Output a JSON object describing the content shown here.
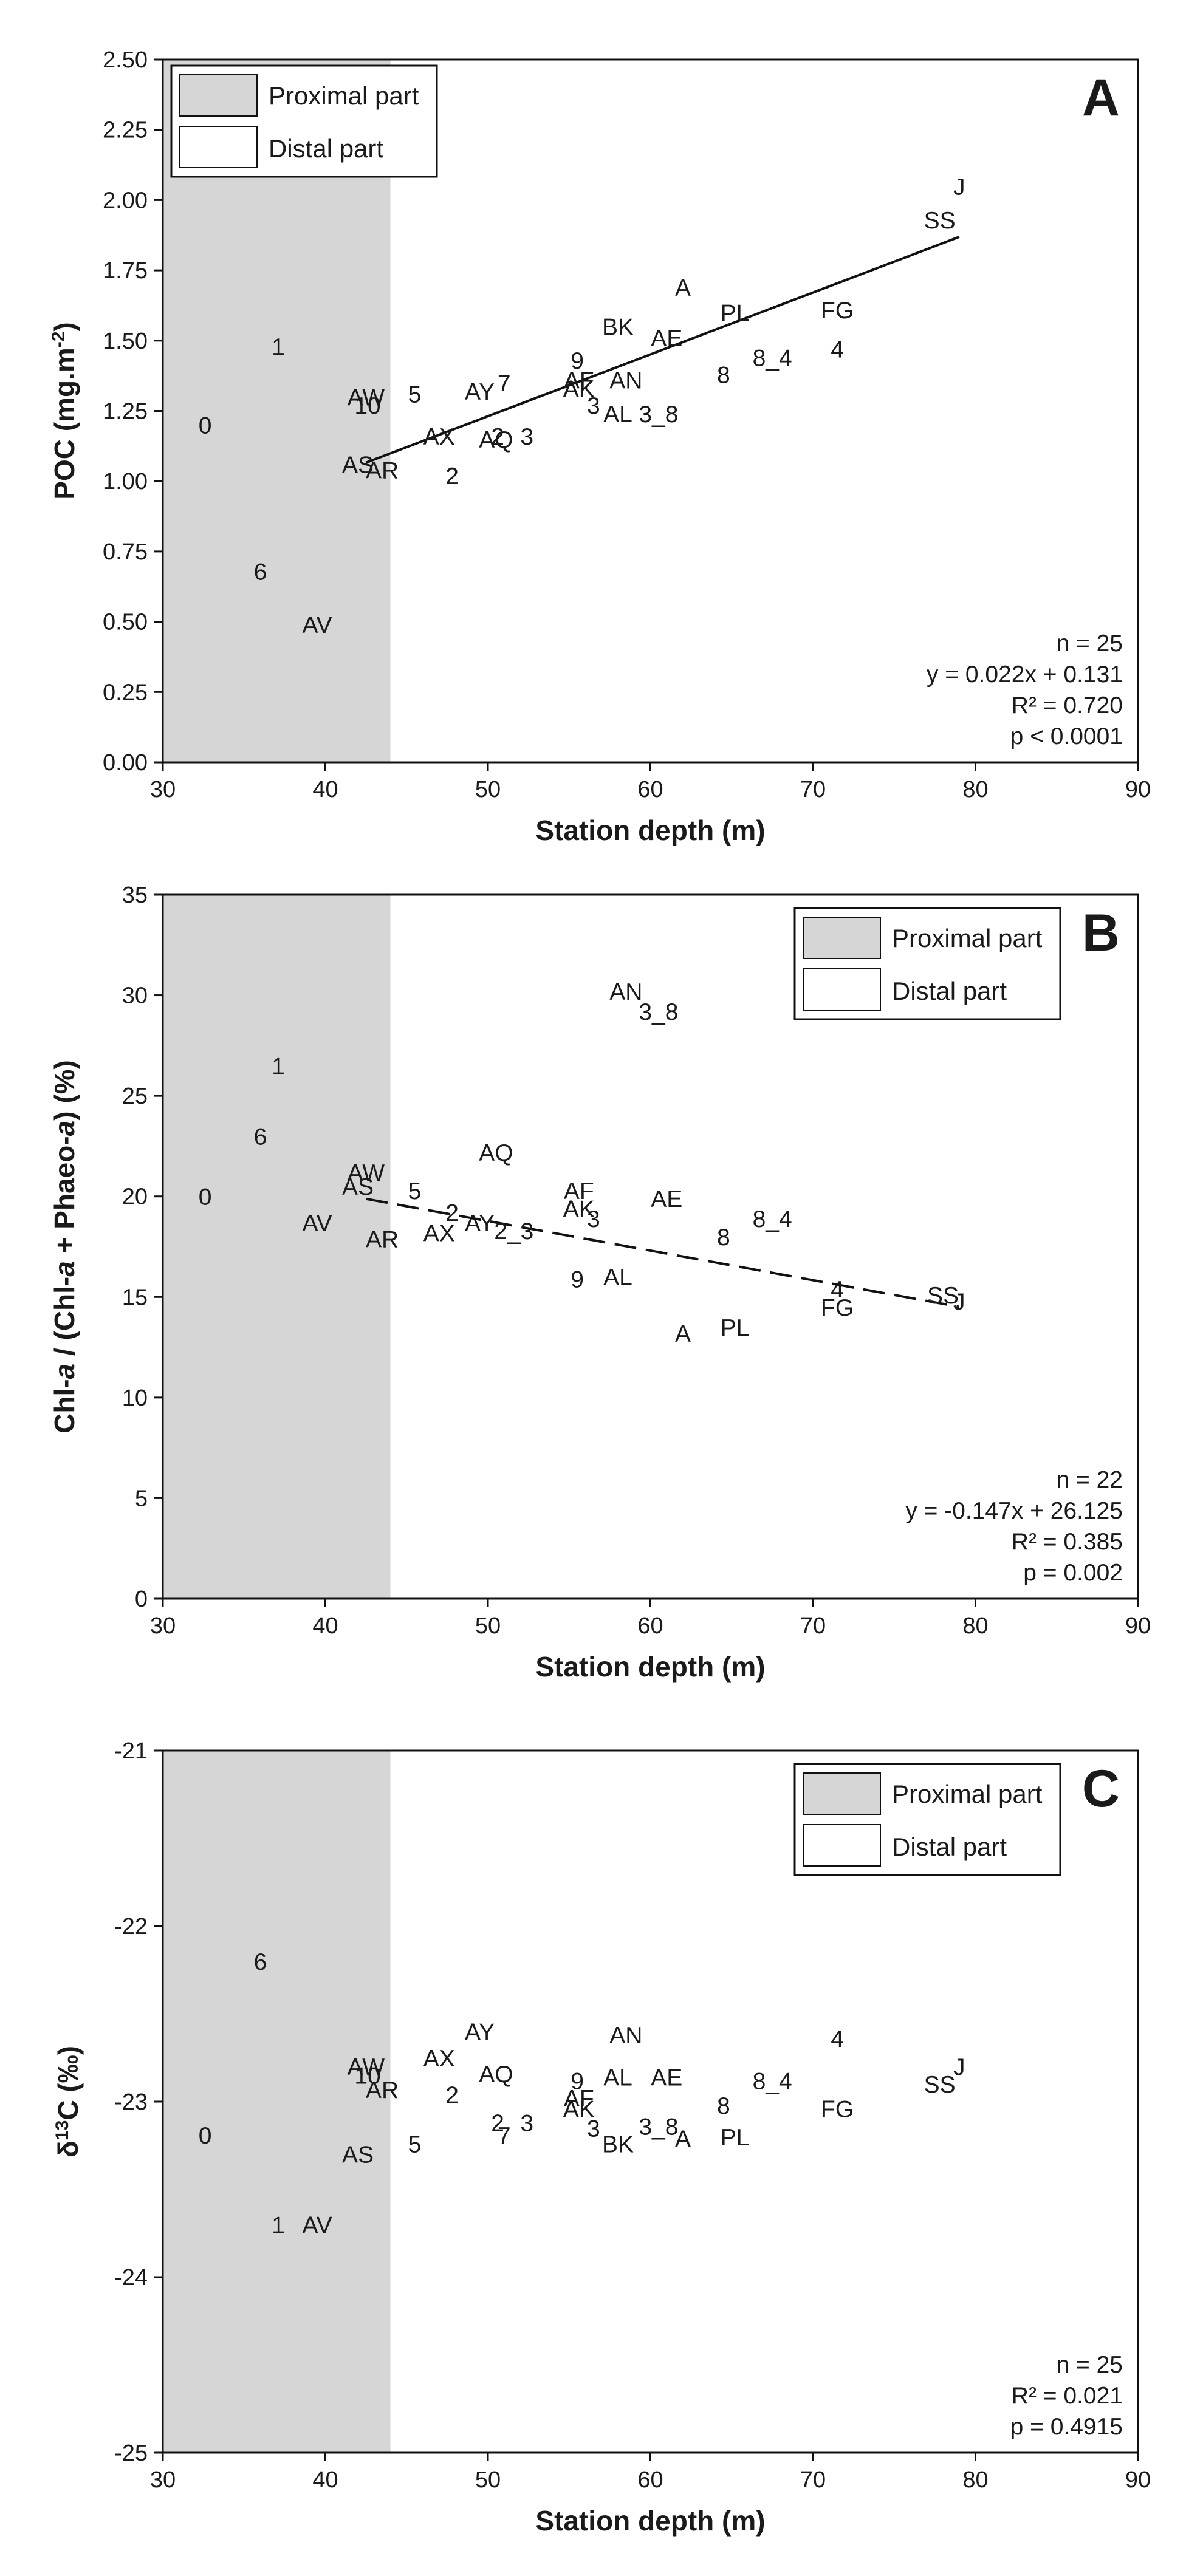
{
  "chart_data": [
    {
      "type": "scatter",
      "panel_letter": "A",
      "ylabel": "POC (mg.m⁻²)",
      "ylabel_parts": [
        {
          "t": "POC (mg.m"
        },
        {
          "t": "-2",
          "sup": true
        },
        {
          "t": ")"
        }
      ],
      "xlabel": "Station depth (m)",
      "xlim": [
        30,
        90
      ],
      "ylim": [
        0,
        2.5
      ],
      "xticks": [
        30,
        40,
        50,
        60,
        70,
        80,
        90
      ],
      "yticks": [
        0,
        0.25,
        0.5,
        0.75,
        1.0,
        1.25,
        1.5,
        1.75,
        2.0,
        2.25,
        2.5
      ],
      "ytick_decimals": 2,
      "proximal_range": [
        30,
        44
      ],
      "legend": {
        "position": "top-left",
        "entries": [
          "Proximal part",
          "Distal part"
        ]
      },
      "regression": {
        "style": "solid",
        "x": [
          42.5,
          79
        ],
        "slope": 0.022,
        "intercept": 0.131
      },
      "stats": [
        "n = 25",
        "y = 0.022x + 0.131",
        "R² = 0.720",
        "p < 0.0001"
      ],
      "points": [
        {
          "label": "0",
          "x": 32.6,
          "y": 1.2
        },
        {
          "label": "1",
          "x": 37.1,
          "y": 1.48
        },
        {
          "label": "6",
          "x": 36.0,
          "y": 0.68
        },
        {
          "label": "AV",
          "x": 39.5,
          "y": 0.49
        },
        {
          "label": "AW",
          "x": 42.5,
          "y": 1.3
        },
        {
          "label": "10",
          "x": 42.6,
          "y": 1.27
        },
        {
          "label": "AS",
          "x": 42.0,
          "y": 1.06
        },
        {
          "label": "AR",
          "x": 43.5,
          "y": 1.04
        },
        {
          "label": "5",
          "x": 45.5,
          "y": 1.31
        },
        {
          "label": "AX",
          "x": 47.0,
          "y": 1.16
        },
        {
          "label": "2",
          "x": 47.8,
          "y": 1.02
        },
        {
          "label": "AY",
          "x": 49.5,
          "y": 1.32
        },
        {
          "label": "7",
          "x": 51.0,
          "y": 1.35
        },
        {
          "label": "AQ",
          "x": 50.5,
          "y": 1.15
        },
        {
          "label": "2",
          "x": 50.6,
          "y": 1.16
        },
        {
          "label": "3",
          "x": 52.4,
          "y": 1.16
        },
        {
          "label": "9",
          "x": 55.5,
          "y": 1.43
        },
        {
          "label": "AF",
          "x": 55.6,
          "y": 1.36
        },
        {
          "label": "AK",
          "x": 55.6,
          "y": 1.33
        },
        {
          "label": "3",
          "x": 56.5,
          "y": 1.27
        },
        {
          "label": "AN",
          "x": 58.5,
          "y": 1.36
        },
        {
          "label": "AL",
          "x": 58.0,
          "y": 1.24
        },
        {
          "label": "3_8",
          "x": 60.5,
          "y": 1.24
        },
        {
          "label": "BK",
          "x": 58.0,
          "y": 1.55
        },
        {
          "label": "AE",
          "x": 61.0,
          "y": 1.51
        },
        {
          "label": "A",
          "x": 62.0,
          "y": 1.69
        },
        {
          "label": "8",
          "x": 64.5,
          "y": 1.38
        },
        {
          "label": "PL",
          "x": 65.2,
          "y": 1.6
        },
        {
          "label": "8_4",
          "x": 67.5,
          "y": 1.44
        },
        {
          "label": "4",
          "x": 71.5,
          "y": 1.47
        },
        {
          "label": "FG",
          "x": 71.5,
          "y": 1.61
        },
        {
          "label": "J",
          "x": 79.0,
          "y": 2.05
        },
        {
          "label": "SS",
          "x": 77.8,
          "y": 1.93
        }
      ]
    },
    {
      "type": "scatter",
      "panel_letter": "B",
      "ylabel": "Chl-a / (Chl-a + Phaeo-a) (%)",
      "ylabel_parts": [
        {
          "t": "Chl-"
        },
        {
          "t": "a",
          "italic": true
        },
        {
          "t": " / (Chl-"
        },
        {
          "t": "a",
          "italic": true
        },
        {
          "t": " + Phaeo-"
        },
        {
          "t": "a",
          "italic": true
        },
        {
          "t": ") (%)"
        }
      ],
      "xlabel": "Station depth (m)",
      "xlim": [
        30,
        90
      ],
      "ylim": [
        0,
        35
      ],
      "xticks": [
        30,
        40,
        50,
        60,
        70,
        80,
        90
      ],
      "yticks": [
        0,
        5,
        10,
        15,
        20,
        25,
        30,
        35
      ],
      "ytick_decimals": 0,
      "proximal_range": [
        30,
        44
      ],
      "legend": {
        "position": "top-right",
        "entries": [
          "Proximal part",
          "Distal part"
        ]
      },
      "regression": {
        "style": "dashed",
        "x": [
          42.5,
          79
        ],
        "slope": -0.147,
        "intercept": 26.125
      },
      "stats": [
        "n = 22",
        "y = -0.147x + 26.125",
        "R² = 0.385",
        "p = 0.002"
      ],
      "points": [
        {
          "label": "0",
          "x": 32.6,
          "y": 20.0
        },
        {
          "label": "1",
          "x": 37.1,
          "y": 26.5
        },
        {
          "label": "6",
          "x": 36.0,
          "y": 23.0
        },
        {
          "label": "AV",
          "x": 39.5,
          "y": 18.7
        },
        {
          "label": "AW",
          "x": 42.5,
          "y": 21.2
        },
        {
          "label": "AS",
          "x": 42.0,
          "y": 20.5
        },
        {
          "label": "AR",
          "x": 43.5,
          "y": 17.9
        },
        {
          "label": "5",
          "x": 45.5,
          "y": 20.3
        },
        {
          "label": "2",
          "x": 47.8,
          "y": 19.2
        },
        {
          "label": "AX",
          "x": 47.0,
          "y": 18.2
        },
        {
          "label": "AY",
          "x": 49.5,
          "y": 18.7
        },
        {
          "label": "AQ",
          "x": 50.5,
          "y": 22.2
        },
        {
          "label": "2_3",
          "x": 51.6,
          "y": 18.3
        },
        {
          "label": "AF",
          "x": 55.6,
          "y": 20.3
        },
        {
          "label": "AK",
          "x": 55.6,
          "y": 19.4
        },
        {
          "label": "3",
          "x": 56.5,
          "y": 18.9
        },
        {
          "label": "9",
          "x": 55.5,
          "y": 15.9
        },
        {
          "label": "AL",
          "x": 58.0,
          "y": 16.0
        },
        {
          "label": "AN",
          "x": 58.5,
          "y": 30.2
        },
        {
          "label": "3_8",
          "x": 60.5,
          "y": 29.2
        },
        {
          "label": "AE",
          "x": 61.0,
          "y": 19.9
        },
        {
          "label": "A",
          "x": 62.0,
          "y": 13.2
        },
        {
          "label": "8",
          "x": 64.5,
          "y": 18.0
        },
        {
          "label": "PL",
          "x": 65.2,
          "y": 13.5
        },
        {
          "label": "8_4",
          "x": 67.5,
          "y": 18.9
        },
        {
          "label": "4",
          "x": 71.5,
          "y": 15.4
        },
        {
          "label": "FG",
          "x": 71.5,
          "y": 14.5
        },
        {
          "label": "SS",
          "x": 78.0,
          "y": 15.1
        },
        {
          "label": "J",
          "x": 79.0,
          "y": 14.8
        }
      ]
    },
    {
      "type": "scatter",
      "panel_letter": "C",
      "ylabel": "δ¹³C (‰)",
      "ylabel_parts": [
        {
          "t": "δ"
        },
        {
          "t": "13",
          "sup": true
        },
        {
          "t": "C (‰)"
        }
      ],
      "xlabel": "Station depth (m)",
      "xlim": [
        30,
        90
      ],
      "ylim": [
        -25,
        -21
      ],
      "xticks": [
        30,
        40,
        50,
        60,
        70,
        80,
        90
      ],
      "yticks": [
        -25,
        -24,
        -23,
        -22,
        -21
      ],
      "ytick_decimals": 0,
      "proximal_range": [
        30,
        44
      ],
      "legend": {
        "position": "top-right",
        "entries": [
          "Proximal part",
          "Distal part"
        ]
      },
      "regression": null,
      "stats": [
        "n = 25",
        "R² = 0.021",
        "p = 0.4915"
      ],
      "points": [
        {
          "label": "0",
          "x": 32.6,
          "y": -23.19
        },
        {
          "label": "6",
          "x": 36.0,
          "y": -22.2
        },
        {
          "label": "1",
          "x": 37.1,
          "y": -23.7
        },
        {
          "label": "AV",
          "x": 39.5,
          "y": -23.7
        },
        {
          "label": "AW",
          "x": 42.5,
          "y": -22.8
        },
        {
          "label": "10",
          "x": 42.6,
          "y": -22.85
        },
        {
          "label": "AR",
          "x": 43.5,
          "y": -22.93
        },
        {
          "label": "AS",
          "x": 42.0,
          "y": -23.3
        },
        {
          "label": "5",
          "x": 45.5,
          "y": -23.24
        },
        {
          "label": "AX",
          "x": 47.0,
          "y": -22.75
        },
        {
          "label": "2",
          "x": 47.8,
          "y": -22.96
        },
        {
          "label": "AY",
          "x": 49.5,
          "y": -22.6
        },
        {
          "label": "AQ",
          "x": 50.5,
          "y": -22.84
        },
        {
          "label": "2",
          "x": 50.6,
          "y": -23.12
        },
        {
          "label": "3",
          "x": 52.4,
          "y": -23.12
        },
        {
          "label": "7",
          "x": 51.0,
          "y": -23.19
        },
        {
          "label": "9",
          "x": 55.5,
          "y": -22.88
        },
        {
          "label": "AF",
          "x": 55.6,
          "y": -22.98
        },
        {
          "label": "AK",
          "x": 55.6,
          "y": -23.04
        },
        {
          "label": "3",
          "x": 56.5,
          "y": -23.15
        },
        {
          "label": "BK",
          "x": 58.0,
          "y": -23.24
        },
        {
          "label": "AN",
          "x": 58.5,
          "y": -22.62
        },
        {
          "label": "AL",
          "x": 58.0,
          "y": -22.86
        },
        {
          "label": "AE",
          "x": 61.0,
          "y": -22.86
        },
        {
          "label": "3_8",
          "x": 60.5,
          "y": -23.14
        },
        {
          "label": "A",
          "x": 62.0,
          "y": -23.21
        },
        {
          "label": "8",
          "x": 64.5,
          "y": -23.02
        },
        {
          "label": "PL",
          "x": 65.2,
          "y": -23.2
        },
        {
          "label": "8_4",
          "x": 67.5,
          "y": -22.88
        },
        {
          "label": "4",
          "x": 71.5,
          "y": -22.64
        },
        {
          "label": "FG",
          "x": 71.5,
          "y": -23.04
        },
        {
          "label": "J",
          "x": 79.0,
          "y": -22.8
        },
        {
          "label": "SS",
          "x": 77.8,
          "y": -22.9
        }
      ]
    }
  ]
}
